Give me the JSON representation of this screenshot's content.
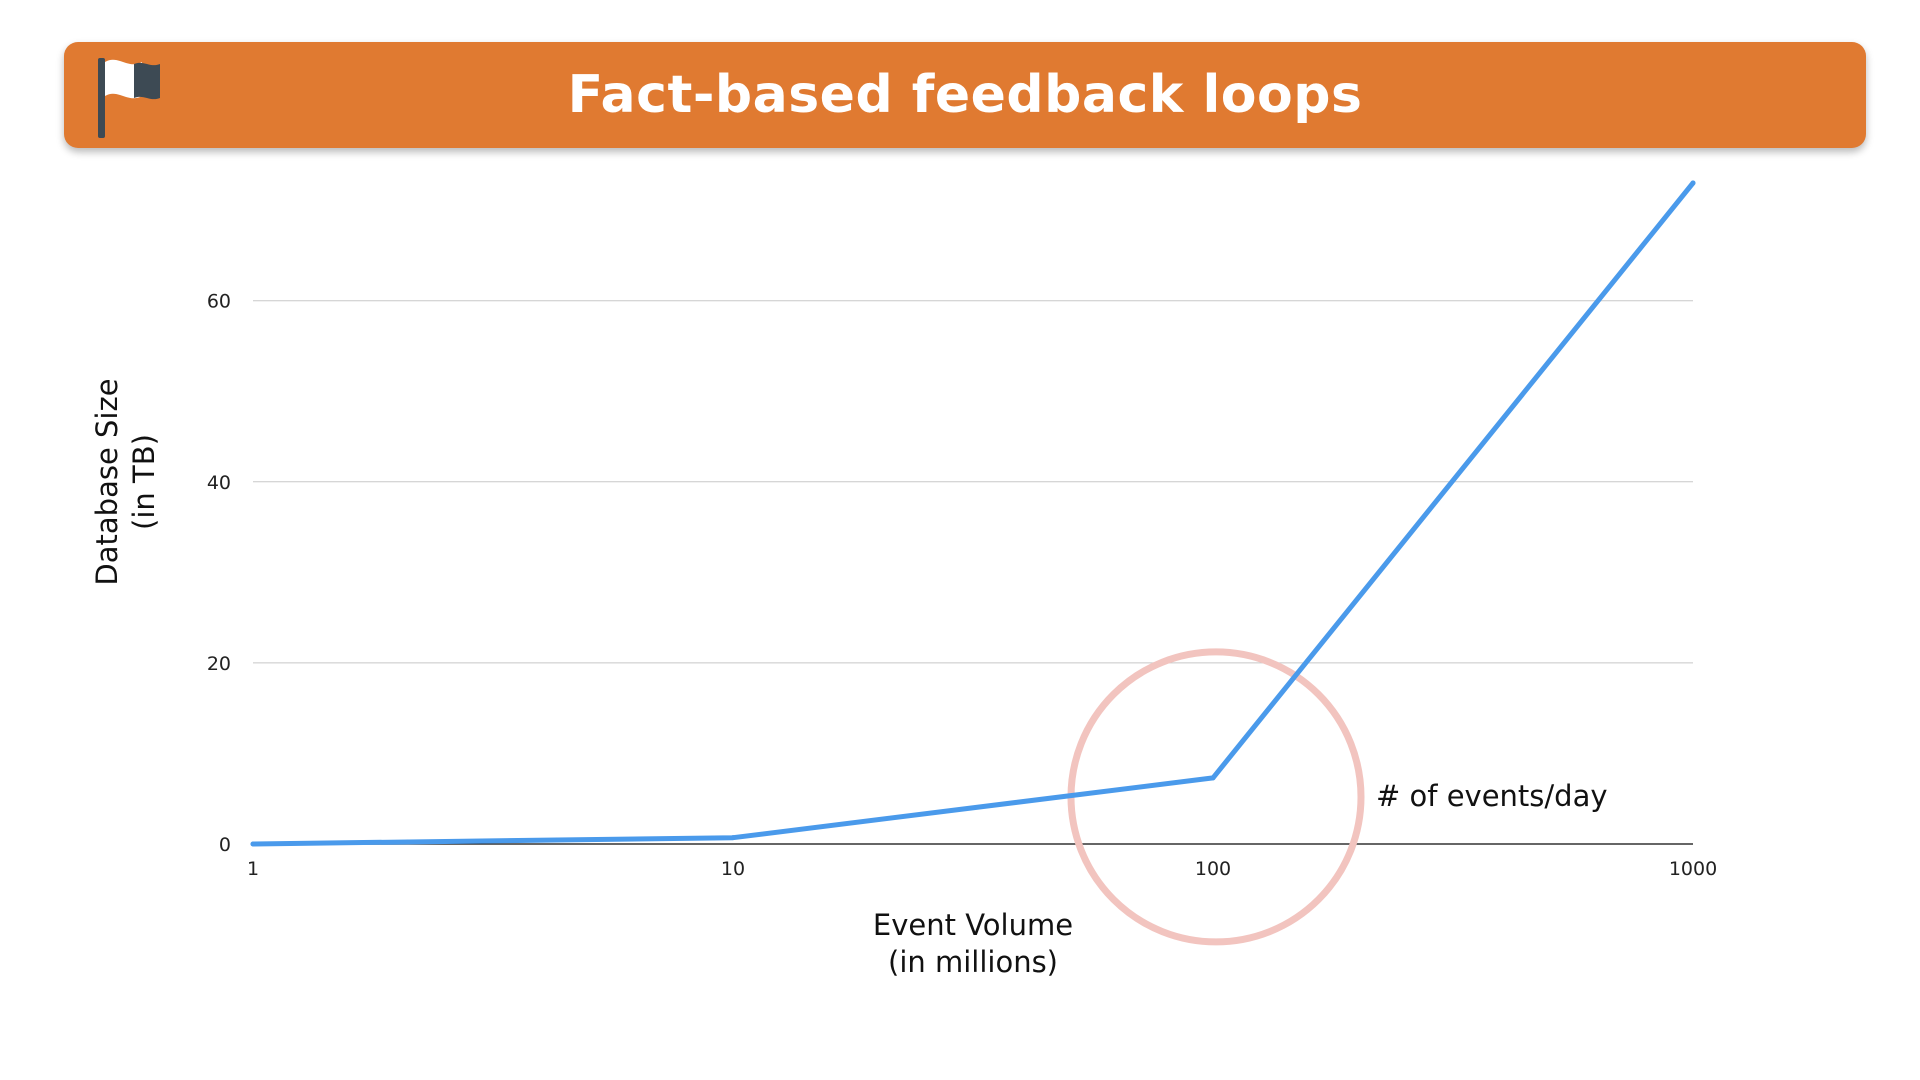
{
  "header": {
    "title": "Fact-based feedback loops",
    "icon": "flag-icon",
    "background_color": "#e07a31"
  },
  "chart_data": {
    "type": "line",
    "title": "",
    "xlabel": [
      "Event Volume",
      "(in millions)"
    ],
    "ylabel": [
      "Database Size",
      "(in TB)"
    ],
    "x_scale": "log",
    "x": [
      1,
      10,
      100,
      1000
    ],
    "x_tick_labels": [
      "1",
      "10",
      "100",
      "1000"
    ],
    "y_ticks": [
      0,
      20,
      40,
      60
    ],
    "y_tick_labels": [
      "0",
      "20",
      "40",
      "60"
    ],
    "ylim": [
      0,
      73
    ],
    "grid": true,
    "series": [
      {
        "values": [
          0,
          0.7,
          7.3,
          73
        ],
        "color": "#4a9aeb"
      }
    ],
    "annotations": [
      {
        "text": "# of events/day",
        "highlight_x": 100,
        "highlight_color": "#f2c4bf"
      }
    ]
  }
}
